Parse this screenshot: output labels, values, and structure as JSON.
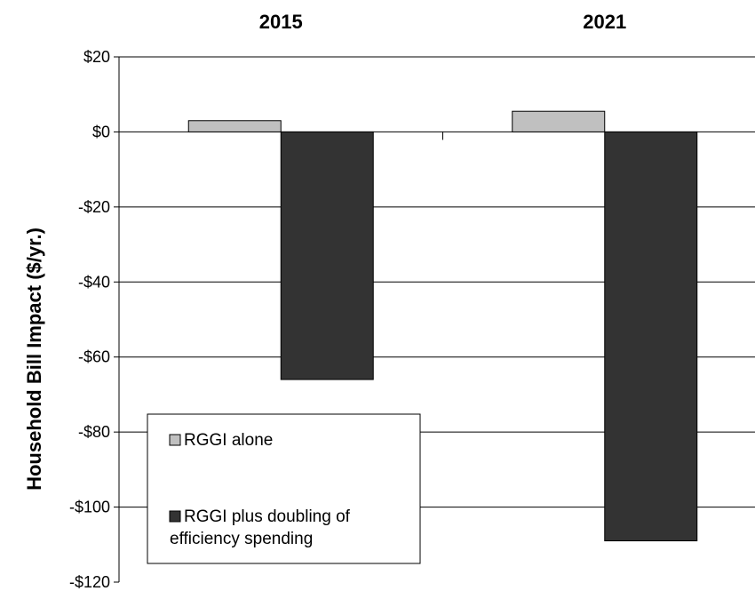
{
  "chart_data": {
    "type": "bar",
    "categories": [
      "2015",
      "2021"
    ],
    "ylabel": "Household Bill Impact ($/yr.)",
    "xlabel": "",
    "ylim": [
      -120,
      20
    ],
    "yticks": [
      20,
      0,
      -20,
      -40,
      -60,
      -80,
      -100,
      -120
    ],
    "ytick_labels": [
      "$20",
      "$0",
      "-$20",
      "-$40",
      "-$60",
      "-$80",
      "-$100",
      "-$120"
    ],
    "grid": true,
    "category_labels_position": "top",
    "legend_position": "bottom-left",
    "series": [
      {
        "name": "RGGI alone",
        "values": [
          3,
          5.5
        ],
        "color": "#c0c0c0"
      },
      {
        "name": "RGGI plus doubling of efficiency spending",
        "values": [
          -66,
          -109
        ],
        "color": "#333333"
      }
    ]
  },
  "legend": {
    "items": [
      {
        "label": "RGGI alone",
        "color": "#c0c0c0"
      },
      {
        "label_lines": [
          "RGGI plus doubling of",
          "efficiency spending"
        ],
        "color": "#333333"
      }
    ]
  }
}
